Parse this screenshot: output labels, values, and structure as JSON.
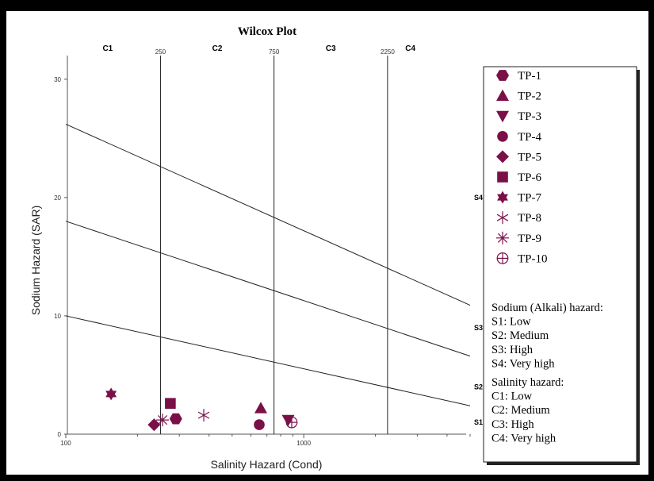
{
  "chart_data": {
    "type": "scatter",
    "title": "Wilcox Plot",
    "xlabel": "Salinity Hazard (Cond)",
    "ylabel": "Sodium Hazard (SAR)",
    "x_scale": "log",
    "xlim": [
      100,
      5000
    ],
    "ylim": [
      0,
      32
    ],
    "x_tick_labels": [
      "100",
      "1000"
    ],
    "y_tick_labels": [
      "0",
      "10",
      "20",
      "30"
    ],
    "salinity_boundaries": [
      {
        "value": 250,
        "label": "250"
      },
      {
        "value": 750,
        "label": "750"
      },
      {
        "value": 2250,
        "label": "2250"
      }
    ],
    "salinity_classes": [
      "C1",
      "C2",
      "C3",
      "C4"
    ],
    "sodium_class_labels": [
      {
        "label": "S1",
        "sar": 1
      },
      {
        "label": "S2",
        "sar": 4
      },
      {
        "label": "S3",
        "sar": 9
      },
      {
        "label": "S4",
        "sar": 20
      }
    ],
    "sodium_lines": [
      {
        "y_at_100": 10,
        "y_at_5000": 2.4
      },
      {
        "y_at_100": 18,
        "y_at_5000": 6.6
      },
      {
        "y_at_100": 26.2,
        "y_at_5000": 10.9
      }
    ],
    "series": [
      {
        "name": "TP-1",
        "marker": "hexagon",
        "x": 290,
        "y": 1.3
      },
      {
        "name": "TP-2",
        "marker": "triangle",
        "x": 660,
        "y": 2.2
      },
      {
        "name": "TP-3",
        "marker": "triangle-down",
        "x": 860,
        "y": 1.2
      },
      {
        "name": "TP-4",
        "marker": "circle",
        "x": 650,
        "y": 0.8
      },
      {
        "name": "TP-5",
        "marker": "diamond",
        "x": 235,
        "y": 0.8
      },
      {
        "name": "TP-6",
        "marker": "square",
        "x": 275,
        "y": 2.6
      },
      {
        "name": "TP-7",
        "marker": "star6",
        "x": 155,
        "y": 3.4
      },
      {
        "name": "TP-8",
        "marker": "asterisk",
        "x": 380,
        "y": 1.6
      },
      {
        "name": "TP-9",
        "marker": "asterisk8",
        "x": 255,
        "y": 1.2
      },
      {
        "name": "TP-10",
        "marker": "circle-plus",
        "x": 890,
        "y": 1.0
      }
    ],
    "marker_color": "#7a1048",
    "legend_position": "right"
  },
  "legend_notes": {
    "sodium_title": "Sodium (Alkali) hazard:",
    "sodium_items": [
      "S1: Low",
      "S2: Medium",
      "S3: High",
      "S4: Very high"
    ],
    "salinity_title": "Salinity hazard:",
    "salinity_items": [
      "C1: Low",
      "C2: Medium",
      "C3: High",
      "C4: Very high"
    ]
  }
}
